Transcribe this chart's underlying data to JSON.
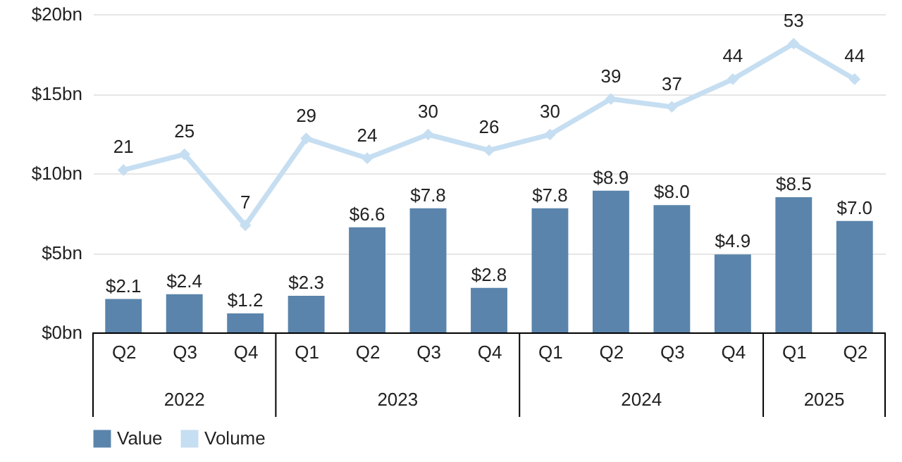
{
  "chart_data": {
    "type": "bar",
    "categories": [
      "Q2",
      "Q3",
      "Q4",
      "Q1",
      "Q2",
      "Q3",
      "Q4",
      "Q1",
      "Q2",
      "Q3",
      "Q4",
      "Q1",
      "Q2"
    ],
    "series": [
      {
        "name": "Value",
        "color": "#5a84ab",
        "values": [
          2.1,
          2.4,
          1.2,
          2.3,
          6.6,
          7.8,
          2.8,
          7.8,
          8.9,
          8.0,
          4.9,
          8.5,
          7.0
        ],
        "value_labels": [
          "$2.1",
          "$2.4",
          "$1.2",
          "$2.3",
          "$6.6",
          "$7.8",
          "$2.8",
          "$7.8",
          "$8.9",
          "$8.0",
          "$4.9",
          "$8.5",
          "$7.0"
        ]
      },
      {
        "name": "Volume",
        "type": "line",
        "axis": "y2",
        "color": "#c6def1",
        "marker": "diamond",
        "values": [
          21,
          25,
          7,
          29,
          24,
          30,
          26,
          30,
          39,
          37,
          44,
          53,
          44
        ],
        "value_labels": [
          "21",
          "25",
          "7",
          "29",
          "24",
          "30",
          "26",
          "30",
          "39",
          "37",
          "44",
          "53",
          "44"
        ]
      }
    ],
    "ylim": [
      0,
      20
    ],
    "yticks": [
      {
        "value": 0,
        "label": "$0bn"
      },
      {
        "value": 5,
        "label": "$5bn"
      },
      {
        "value": 10,
        "label": "$10bn"
      },
      {
        "value": 15,
        "label": "$15bn"
      },
      {
        "value": 20,
        "label": "$20bn"
      }
    ],
    "grid": "y",
    "legend": "bottom",
    "annotations": [
      "2022",
      "2023",
      "2024",
      "2025"
    ]
  }
}
